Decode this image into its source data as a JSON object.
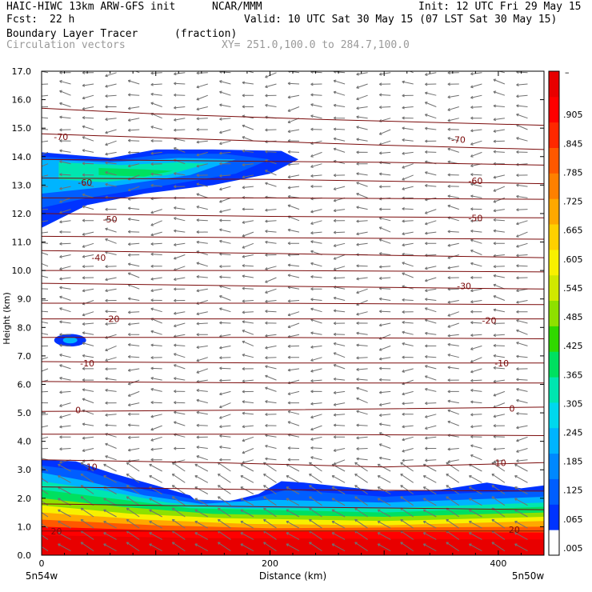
{
  "header": {
    "model": "HAIC-HIWC 13km ARW-GFS init",
    "org": "NCAR/MMM",
    "init": "Init: 12 UTC Fri 29 May 15",
    "fcst_label": "Fcst:",
    "fcst_value": "22 h",
    "valid": "Valid: 10 UTC Sat 30 May 15 (07 LST Sat 30 May 15)",
    "field": "Boundary Layer Tracer",
    "units": "(fraction)",
    "vectors": "Circulation vectors",
    "xsec": "XY= 251.0,100.0 to 284.7,100.0"
  },
  "colors": {
    "contour_line": "#7a0a0a",
    "vector": "#707070",
    "frame": "#000000"
  },
  "chart_data": {
    "type": "heatmap",
    "title": "Boundary Layer Tracer",
    "xlabel": "Distance (km)",
    "ylabel": "Height (km)",
    "xlim": [
      0,
      440
    ],
    "ylim": [
      0,
      17
    ],
    "x_ticks": [
      0,
      200,
      400
    ],
    "x_tick_labels": [
      "0",
      "200",
      "400"
    ],
    "y_ticks": [
      0,
      1,
      2,
      3,
      4,
      5,
      6,
      7,
      8,
      9,
      10,
      11,
      12,
      13,
      14,
      15,
      16,
      17
    ],
    "y_tick_labels": [
      "0.0",
      "1.0",
      "2.0",
      "3.0",
      "4.0",
      "5.0",
      "6.0",
      "7.0",
      "8.0",
      "9.0",
      "10.0",
      "11.0",
      "12.0",
      "13.0",
      "14.0",
      "15.0",
      "16.0",
      "17.0"
    ],
    "x_end_labels": [
      "5n54w",
      "5n50w"
    ],
    "colorbar": {
      "labels": [
        ".005",
        ".065",
        ".125",
        ".185",
        ".245",
        ".305",
        ".365",
        ".425",
        ".485",
        ".545",
        ".605",
        ".665",
        ".725",
        ".785",
        ".845",
        ".905"
      ],
      "top_label": "–",
      "colors": [
        "#ffffff",
        "#0033ff",
        "#005eff",
        "#0088ff",
        "#00b4ff",
        "#00d8ee",
        "#00e6b0",
        "#00e060",
        "#30d800",
        "#8ee000",
        "#d0e800",
        "#f8f000",
        "#ffd000",
        "#ffa800",
        "#ff8000",
        "#ff5800",
        "#ff2800",
        "#ff0000",
        "#e80000"
      ]
    },
    "tracer_layers": [
      {
        "level": 0.035,
        "top": [
          [
            0,
            3.35
          ],
          [
            30,
            3.3
          ],
          [
            60,
            2.9
          ],
          [
            100,
            2.45
          ],
          [
            130,
            2.1
          ],
          [
            140,
            1.75
          ],
          [
            170,
            1.95
          ],
          [
            190,
            2.15
          ],
          [
            210,
            2.6
          ],
          [
            230,
            2.55
          ],
          [
            300,
            2.25
          ],
          [
            350,
            2.3
          ],
          [
            390,
            2.55
          ],
          [
            420,
            2.35
          ],
          [
            440,
            2.45
          ]
        ]
      },
      {
        "level": 0.065,
        "top": [
          [
            0,
            3.15
          ],
          [
            40,
            2.95
          ],
          [
            90,
            2.3
          ],
          [
            135,
            1.95
          ],
          [
            175,
            1.9
          ],
          [
            215,
            2.3
          ],
          [
            300,
            2.05
          ],
          [
            380,
            2.2
          ],
          [
            440,
            2.25
          ]
        ]
      },
      {
        "level": 0.125,
        "top": [
          [
            0,
            2.9
          ],
          [
            40,
            2.6
          ],
          [
            90,
            2.1
          ],
          [
            140,
            1.8
          ],
          [
            200,
            1.95
          ],
          [
            300,
            1.85
          ],
          [
            440,
            2.05
          ]
        ]
      },
      {
        "level": 0.185,
        "top": [
          [
            0,
            2.6
          ],
          [
            50,
            2.3
          ],
          [
            110,
            1.85
          ],
          [
            170,
            1.65
          ],
          [
            300,
            1.65
          ],
          [
            440,
            1.85
          ]
        ]
      },
      {
        "level": 0.245,
        "top": [
          [
            0,
            2.3
          ],
          [
            60,
            2.0
          ],
          [
            130,
            1.65
          ],
          [
            300,
            1.5
          ],
          [
            440,
            1.7
          ]
        ]
      },
      {
        "level": 0.365,
        "top": [
          [
            0,
            2.0
          ],
          [
            70,
            1.7
          ],
          [
            150,
            1.45
          ],
          [
            300,
            1.35
          ],
          [
            440,
            1.5
          ]
        ]
      },
      {
        "level": 0.485,
        "top": [
          [
            0,
            1.75
          ],
          [
            80,
            1.45
          ],
          [
            160,
            1.3
          ],
          [
            300,
            1.2
          ],
          [
            440,
            1.35
          ]
        ]
      },
      {
        "level": 0.605,
        "top": [
          [
            0,
            1.5
          ],
          [
            90,
            1.25
          ],
          [
            180,
            1.1
          ],
          [
            300,
            1.05
          ],
          [
            440,
            1.2
          ]
        ]
      },
      {
        "level": 0.725,
        "top": [
          [
            0,
            1.25
          ],
          [
            100,
            1.05
          ],
          [
            200,
            0.95
          ],
          [
            440,
            1.0
          ]
        ]
      },
      {
        "level": 0.845,
        "top": [
          [
            0,
            1.0
          ],
          [
            120,
            0.85
          ],
          [
            440,
            0.8
          ]
        ]
      },
      {
        "level": 0.965,
        "top": [
          [
            0,
            0.7
          ],
          [
            140,
            0.6
          ],
          [
            440,
            0.55
          ]
        ]
      }
    ],
    "upper_plume": [
      {
        "level": 0.035,
        "upper": [
          [
            0,
            14.15
          ],
          [
            60,
            13.95
          ],
          [
            100,
            14.25
          ],
          [
            150,
            14.25
          ],
          [
            210,
            14.2
          ],
          [
            225,
            13.9
          ]
        ],
        "lower": [
          [
            225,
            13.9
          ],
          [
            200,
            13.4
          ],
          [
            150,
            13.0
          ],
          [
            90,
            12.7
          ],
          [
            40,
            12.3
          ],
          [
            0,
            11.5
          ]
        ]
      },
      {
        "level": 0.065,
        "upper": [
          [
            0,
            14.0
          ],
          [
            60,
            13.85
          ],
          [
            110,
            14.1
          ],
          [
            160,
            14.1
          ],
          [
            200,
            13.9
          ]
        ],
        "lower": [
          [
            200,
            13.9
          ],
          [
            170,
            13.4
          ],
          [
            110,
            13.0
          ],
          [
            40,
            12.55
          ],
          [
            0,
            12.2
          ]
        ]
      },
      {
        "level": 0.125,
        "upper": [
          [
            0,
            13.9
          ],
          [
            60,
            13.8
          ],
          [
            120,
            13.95
          ],
          [
            170,
            13.9
          ]
        ],
        "lower": [
          [
            170,
            13.9
          ],
          [
            130,
            13.35
          ],
          [
            60,
            12.95
          ],
          [
            0,
            12.7
          ]
        ]
      },
      {
        "level": 0.185,
        "upper": [
          [
            15,
            13.8
          ],
          [
            70,
            13.7
          ],
          [
            120,
            13.8
          ],
          [
            145,
            13.75
          ]
        ],
        "lower": [
          [
            145,
            13.75
          ],
          [
            110,
            13.35
          ],
          [
            55,
            13.1
          ],
          [
            15,
            13.2
          ]
        ]
      },
      {
        "level": 0.245,
        "upper": [
          [
            50,
            13.6
          ],
          [
            90,
            13.55
          ],
          [
            115,
            13.5
          ]
        ],
        "lower": [
          [
            115,
            13.5
          ],
          [
            90,
            13.3
          ],
          [
            50,
            13.35
          ]
        ]
      }
    ],
    "small_blob": {
      "level": 0.035,
      "cx": 25,
      "cy": 7.55,
      "rx": 14,
      "ry": 0.22
    },
    "contours": [
      {
        "label": "-70",
        "points": [
          [
            0,
            15.7
          ],
          [
            100,
            15.5
          ],
          [
            250,
            15.3
          ],
          [
            440,
            15.1
          ]
        ],
        "label_at": [
          [
            17,
            14.7
          ],
          [
            365,
            14.6
          ]
        ]
      },
      {
        "label": "",
        "points": [
          [
            0,
            14.8
          ],
          [
            150,
            14.6
          ],
          [
            300,
            14.4
          ],
          [
            440,
            14.25
          ]
        ],
        "label_at": []
      },
      {
        "label": "",
        "points": [
          [
            0,
            13.9
          ],
          [
            150,
            13.85
          ],
          [
            300,
            13.8
          ],
          [
            440,
            13.7
          ]
        ],
        "label_at": []
      },
      {
        "label": "-60",
        "points": [
          [
            0,
            13.25
          ],
          [
            200,
            13.2
          ],
          [
            440,
            13.05
          ]
        ],
        "label_at": [
          [
            38,
            13.1
          ],
          [
            380,
            13.15
          ]
        ]
      },
      {
        "label": "",
        "points": [
          [
            0,
            12.55
          ],
          [
            200,
            12.55
          ],
          [
            440,
            12.5
          ]
        ],
        "label_at": []
      },
      {
        "label": "-50",
        "points": [
          [
            0,
            12.0
          ],
          [
            200,
            11.9
          ],
          [
            440,
            11.85
          ]
        ],
        "label_at": [
          [
            60,
            11.8
          ],
          [
            380,
            11.85
          ]
        ]
      },
      {
        "label": "",
        "points": [
          [
            0,
            11.2
          ],
          [
            200,
            11.15
          ],
          [
            440,
            11.1
          ]
        ],
        "label_at": []
      },
      {
        "label": "-40",
        "points": [
          [
            0,
            10.7
          ],
          [
            200,
            10.6
          ],
          [
            440,
            10.45
          ]
        ],
        "label_at": [
          [
            50,
            10.45
          ]
        ]
      },
      {
        "label": "",
        "points": [
          [
            0,
            10.0
          ],
          [
            200,
            10.0
          ],
          [
            440,
            9.95
          ]
        ],
        "label_at": []
      },
      {
        "label": "-30",
        "points": [
          [
            0,
            9.55
          ],
          [
            200,
            9.45
          ],
          [
            440,
            9.35
          ]
        ],
        "label_at": [
          [
            370,
            9.45
          ]
        ]
      },
      {
        "label": "",
        "points": [
          [
            0,
            8.85
          ],
          [
            200,
            8.85
          ],
          [
            440,
            8.8
          ]
        ],
        "label_at": []
      },
      {
        "label": "-20",
        "points": [
          [
            0,
            8.3
          ],
          [
            200,
            8.3
          ],
          [
            440,
            8.3
          ]
        ],
        "label_at": [
          [
            62,
            8.3
          ],
          [
            392,
            8.25
          ]
        ]
      },
      {
        "label": "",
        "points": [
          [
            0,
            7.65
          ],
          [
            200,
            7.65
          ],
          [
            440,
            7.6
          ]
        ],
        "label_at": []
      },
      {
        "label": "-10",
        "points": [
          [
            0,
            6.8
          ],
          [
            200,
            6.75
          ],
          [
            440,
            6.75
          ]
        ],
        "label_at": [
          [
            40,
            6.75
          ],
          [
            403,
            6.75
          ]
        ]
      },
      {
        "label": "",
        "points": [
          [
            0,
            6.1
          ],
          [
            200,
            6.05
          ],
          [
            440,
            6.05
          ]
        ],
        "label_at": []
      },
      {
        "label": "0",
        "points": [
          [
            0,
            5.05
          ],
          [
            200,
            5.1
          ],
          [
            440,
            5.2
          ]
        ],
        "label_at": [
          [
            32,
            5.1
          ],
          [
            412,
            5.15
          ]
        ]
      },
      {
        "label": "",
        "points": [
          [
            0,
            4.25
          ],
          [
            200,
            4.25
          ],
          [
            440,
            4.2
          ]
        ],
        "label_at": []
      },
      {
        "label": "10",
        "points": [
          [
            0,
            3.35
          ],
          [
            150,
            3.25
          ],
          [
            300,
            3.1
          ],
          [
            440,
            3.25
          ]
        ],
        "label_at": [
          [
            44,
            3.1
          ],
          [
            402,
            3.25
          ]
        ]
      },
      {
        "label": "",
        "points": [
          [
            0,
            2.4
          ],
          [
            200,
            2.3
          ],
          [
            440,
            2.25
          ]
        ],
        "label_at": []
      },
      {
        "label": "",
        "points": [
          [
            0,
            1.8
          ],
          [
            100,
            1.75
          ],
          [
            200,
            1.7
          ],
          [
            440,
            1.6
          ]
        ],
        "label_at": []
      },
      {
        "label": "20",
        "points": [
          [
            0,
            0.85
          ],
          [
            200,
            0.85
          ],
          [
            440,
            0.85
          ]
        ],
        "label_at": [
          [
            13,
            0.85
          ],
          [
            414,
            0.9
          ]
        ]
      }
    ],
    "vectors": {
      "x_spacing_km": 20,
      "y_spacing_km": 0.4,
      "upper_u": -14,
      "lower_u": -16,
      "upper_w_range": [
        -0.6,
        0.6
      ],
      "lower_w": 0.9
    }
  }
}
